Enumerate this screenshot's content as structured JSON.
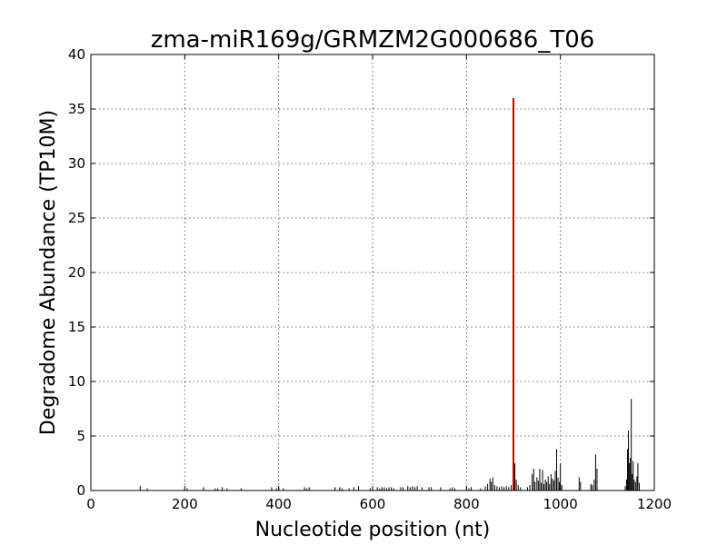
{
  "chart_data": {
    "type": "bar",
    "title": "zma-miR169g/GRMZM2G000686_T06",
    "xlabel": "Nucleotide position (nt)",
    "ylabel": "Degradome Abundance (TP10M)",
    "xlim": [
      0,
      1200
    ],
    "ylim": [
      0,
      40
    ],
    "xticks": [
      "0",
      "200",
      "400",
      "600",
      "800",
      "1000",
      "1200"
    ],
    "yticks": [
      "0",
      "5",
      "10",
      "15",
      "20",
      "25",
      "30",
      "35",
      "40"
    ],
    "grid": true,
    "series": [
      {
        "color": "#000000",
        "points": [
          [
            105,
            0.4
          ],
          [
            120,
            0.2
          ],
          [
            205,
            0.2
          ],
          [
            240,
            0.3
          ],
          [
            265,
            0.2
          ],
          [
            270,
            0.2
          ],
          [
            280,
            0.3
          ],
          [
            290,
            0.2
          ],
          [
            320,
            0.2
          ],
          [
            385,
            0.3
          ],
          [
            395,
            0.2
          ],
          [
            400,
            0.3
          ],
          [
            410,
            0.2
          ],
          [
            455,
            0.3
          ],
          [
            460,
            0.2
          ],
          [
            465,
            0.3
          ],
          [
            520,
            0.3
          ],
          [
            530,
            0.3
          ],
          [
            535,
            0.2
          ],
          [
            550,
            0.2
          ],
          [
            560,
            0.3
          ],
          [
            570,
            0.4
          ],
          [
            595,
            0.2
          ],
          [
            610,
            0.3
          ],
          [
            615,
            0.2
          ],
          [
            620,
            0.3
          ],
          [
            625,
            0.3
          ],
          [
            630,
            0.2
          ],
          [
            635,
            0.3
          ],
          [
            640,
            0.3
          ],
          [
            645,
            0.2
          ],
          [
            660,
            0.3
          ],
          [
            665,
            0.3
          ],
          [
            675,
            0.4
          ],
          [
            680,
            0.3
          ],
          [
            685,
            0.4
          ],
          [
            690,
            0.3
          ],
          [
            695,
            0.4
          ],
          [
            705,
            0.3
          ],
          [
            720,
            0.3
          ],
          [
            725,
            0.3
          ],
          [
            745,
            0.3
          ],
          [
            765,
            0.2
          ],
          [
            770,
            0.3
          ],
          [
            775,
            0.2
          ],
          [
            805,
            0.2
          ],
          [
            810,
            0.3
          ],
          [
            830,
            0.2
          ],
          [
            840,
            0.4
          ],
          [
            845,
            0.6
          ],
          [
            850,
            1.1
          ],
          [
            853,
            0.8
          ],
          [
            856,
            1.2
          ],
          [
            860,
            0.5
          ],
          [
            865,
            0.4
          ],
          [
            870,
            0.3
          ],
          [
            875,
            0.4
          ],
          [
            880,
            0.3
          ],
          [
            885,
            0.4
          ],
          [
            890,
            0.3
          ],
          [
            895,
            0.5
          ],
          [
            903,
            2.5
          ],
          [
            906,
            1.0
          ],
          [
            910,
            0.5
          ],
          [
            915,
            0.3
          ],
          [
            930,
            0.3
          ],
          [
            935,
            0.5
          ],
          [
            940,
            1.5
          ],
          [
            943,
            2.0
          ],
          [
            946,
            0.8
          ],
          [
            950,
            1.2
          ],
          [
            953,
            0.9
          ],
          [
            956,
            2.0
          ],
          [
            959,
            0.7
          ],
          [
            962,
            1.9
          ],
          [
            965,
            0.6
          ],
          [
            968,
            1.0
          ],
          [
            971,
            0.8
          ],
          [
            974,
            1.3
          ],
          [
            977,
            0.6
          ],
          [
            980,
            1.5
          ],
          [
            983,
            1.1
          ],
          [
            986,
            0.9
          ],
          [
            989,
            1.8
          ],
          [
            992,
            3.8
          ],
          [
            995,
            1.2
          ],
          [
            998,
            0.8
          ],
          [
            1000,
            2.5
          ],
          [
            1003,
            0.5
          ],
          [
            1040,
            1.2
          ],
          [
            1043,
            0.8
          ],
          [
            1065,
            0.6
          ],
          [
            1068,
            0.5
          ],
          [
            1072,
            1.0
          ],
          [
            1075,
            3.3
          ],
          [
            1078,
            2.0
          ],
          [
            1138,
            0.4
          ],
          [
            1141,
            1.0
          ],
          [
            1143,
            3.8
          ],
          [
            1145,
            5.5
          ],
          [
            1147,
            2.5
          ],
          [
            1149,
            3.0
          ],
          [
            1151,
            8.4
          ],
          [
            1153,
            1.5
          ],
          [
            1155,
            2.7
          ],
          [
            1157,
            1.0
          ],
          [
            1160,
            0.8
          ],
          [
            1163,
            1.3
          ],
          [
            1165,
            2.5
          ],
          [
            1168,
            0.7
          ]
        ]
      },
      {
        "color": "#cc0000",
        "points": [
          [
            900,
            36
          ]
        ]
      }
    ]
  }
}
